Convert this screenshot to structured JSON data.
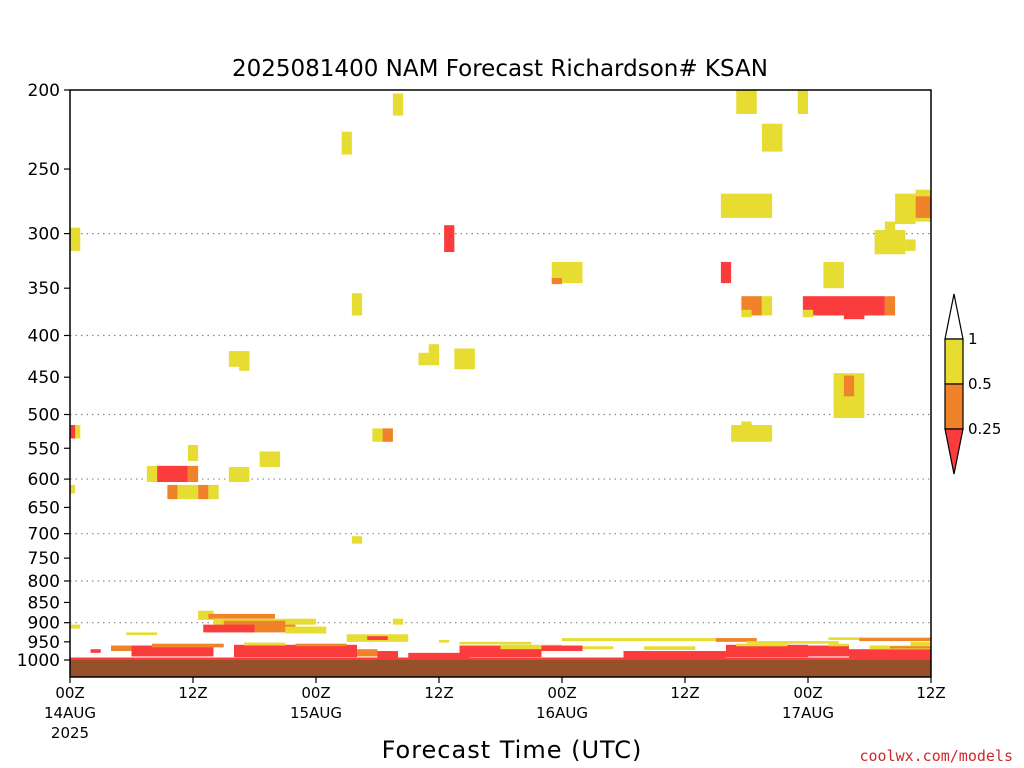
{
  "chart_data": {
    "type": "heatmap",
    "title": "2025081400 NAM Forecast Richardson# KSAN",
    "xlabel": "Forecast Time (UTC)",
    "ylabel": "",
    "xlim": [
      0,
      84
    ],
    "ylim": [
      1000,
      200
    ],
    "y_scale": "log",
    "y_ticks": [
      200,
      250,
      300,
      350,
      400,
      450,
      500,
      550,
      600,
      650,
      700,
      750,
      800,
      850,
      900,
      950,
      1000
    ],
    "gridlines_at": [
      300,
      400,
      500,
      600,
      700,
      800,
      900
    ],
    "x_ticks": [
      {
        "hour": 0,
        "label": "00Z",
        "sub": "14AUG",
        "sub2": "2025"
      },
      {
        "hour": 12,
        "label": "12Z",
        "sub": "",
        "sub2": ""
      },
      {
        "hour": 24,
        "label": "00Z",
        "sub": "15AUG",
        "sub2": ""
      },
      {
        "hour": 36,
        "label": "12Z",
        "sub": "",
        "sub2": ""
      },
      {
        "hour": 48,
        "label": "00Z",
        "sub": "16AUG",
        "sub2": ""
      },
      {
        "hour": 60,
        "label": "12Z",
        "sub": "",
        "sub2": ""
      },
      {
        "hour": 72,
        "label": "00Z",
        "sub": "17AUG",
        "sub2": ""
      },
      {
        "hour": 84,
        "label": "12Z",
        "sub": "",
        "sub2": ""
      }
    ],
    "legend": {
      "placement": "right",
      "levels": [
        "1",
        "0.5",
        "0.25"
      ],
      "colors": {
        "gt1": "#ffffff",
        "mid_high": "#e6dc32",
        "mid_low": "#f0822a",
        "low": "#fa3c3c"
      }
    },
    "colors": {
      "yellow": "#e6dc32",
      "orange": "#f0822a",
      "red": "#fa3c3c",
      "ground": "#96502a"
    },
    "cells": [
      {
        "t0": 0,
        "t1": 1,
        "p0": 295,
        "p1": 315,
        "c": "yellow"
      },
      {
        "t0": 0,
        "t1": 1,
        "p0": 515,
        "p1": 535,
        "c": "yellow"
      },
      {
        "t0": 0,
        "t1": 0.5,
        "p0": 515,
        "p1": 535,
        "c": "red"
      },
      {
        "t0": 0,
        "t1": 0.5,
        "p0": 610,
        "p1": 625,
        "c": "yellow"
      },
      {
        "t0": 31.5,
        "t1": 32.5,
        "p0": 202,
        "p1": 215,
        "c": "yellow"
      },
      {
        "t0": 26.5,
        "t1": 27.5,
        "p0": 225,
        "p1": 240,
        "c": "yellow"
      },
      {
        "t0": 36.5,
        "t1": 37.5,
        "p0": 293,
        "p1": 316,
        "c": "red"
      },
      {
        "t0": 47,
        "t1": 50,
        "p0": 325,
        "p1": 345,
        "c": "yellow"
      },
      {
        "t0": 47,
        "t1": 48,
        "p0": 340,
        "p1": 346,
        "c": "orange"
      },
      {
        "t0": 27.5,
        "t1": 28.5,
        "p0": 355,
        "p1": 378,
        "c": "yellow"
      },
      {
        "t0": 15.5,
        "t1": 17.5,
        "p0": 418,
        "p1": 437,
        "c": "yellow"
      },
      {
        "t0": 16.5,
        "t1": 17.5,
        "p0": 420,
        "p1": 442,
        "c": "yellow"
      },
      {
        "t0": 34,
        "t1": 36,
        "p0": 420,
        "p1": 435,
        "c": "yellow"
      },
      {
        "t0": 35,
        "t1": 36,
        "p0": 410,
        "p1": 430,
        "c": "yellow"
      },
      {
        "t0": 37.5,
        "t1": 39.5,
        "p0": 415,
        "p1": 440,
        "c": "yellow"
      },
      {
        "t0": 29.5,
        "t1": 31.5,
        "p0": 520,
        "p1": 540,
        "c": "yellow"
      },
      {
        "t0": 30.5,
        "t1": 31.5,
        "p0": 520,
        "p1": 540,
        "c": "orange"
      },
      {
        "t0": 18.5,
        "t1": 20.5,
        "p0": 555,
        "p1": 580,
        "c": "yellow"
      },
      {
        "t0": 11.5,
        "t1": 12.5,
        "p0": 545,
        "p1": 570,
        "c": "yellow"
      },
      {
        "t0": 7.5,
        "t1": 8.5,
        "p0": 578,
        "p1": 605,
        "c": "yellow"
      },
      {
        "t0": 8.5,
        "t1": 11.5,
        "p0": 578,
        "p1": 605,
        "c": "red"
      },
      {
        "t0": 11.5,
        "t1": 12.5,
        "p0": 578,
        "p1": 605,
        "c": "orange"
      },
      {
        "t0": 15.5,
        "t1": 17.5,
        "p0": 580,
        "p1": 605,
        "c": "yellow"
      },
      {
        "t0": 9.5,
        "t1": 10.5,
        "p0": 610,
        "p1": 635,
        "c": "orange"
      },
      {
        "t0": 10.5,
        "t1": 12.5,
        "p0": 610,
        "p1": 635,
        "c": "yellow"
      },
      {
        "t0": 12.5,
        "t1": 13.5,
        "p0": 610,
        "p1": 635,
        "c": "orange"
      },
      {
        "t0": 13.5,
        "t1": 14.5,
        "p0": 610,
        "p1": 635,
        "c": "yellow"
      },
      {
        "t0": 27.5,
        "t1": 28.5,
        "p0": 705,
        "p1": 720,
        "c": "yellow"
      },
      {
        "t0": 31.5,
        "t1": 32.5,
        "p0": 890,
        "p1": 905,
        "c": "yellow"
      },
      {
        "t0": 65,
        "t1": 66,
        "p0": 200,
        "p1": 214,
        "c": "yellow"
      },
      {
        "t0": 66,
        "t1": 67,
        "p0": 200,
        "p1": 214,
        "c": "yellow"
      },
      {
        "t0": 71,
        "t1": 72,
        "p0": 200,
        "p1": 214,
        "c": "yellow"
      },
      {
        "t0": 67.5,
        "t1": 69.5,
        "p0": 220,
        "p1": 238,
        "c": "yellow"
      },
      {
        "t0": 63.5,
        "t1": 68.5,
        "p0": 268,
        "p1": 287,
        "c": "yellow"
      },
      {
        "t0": 80.5,
        "t1": 82.5,
        "p0": 268,
        "p1": 292,
        "c": "yellow"
      },
      {
        "t0": 82.5,
        "t1": 84,
        "p0": 265,
        "p1": 290,
        "c": "yellow"
      },
      {
        "t0": 82.5,
        "t1": 84,
        "p0": 270,
        "p1": 287,
        "c": "orange"
      },
      {
        "t0": 79.5,
        "t1": 80.5,
        "p0": 290,
        "p1": 315,
        "c": "yellow"
      },
      {
        "t0": 78.5,
        "t1": 81.5,
        "p0": 297,
        "p1": 318,
        "c": "yellow"
      },
      {
        "t0": 81.5,
        "t1": 82.5,
        "p0": 305,
        "p1": 315,
        "c": "yellow"
      },
      {
        "t0": 63.5,
        "t1": 64.5,
        "p0": 325,
        "p1": 345,
        "c": "red"
      },
      {
        "t0": 73.5,
        "t1": 75.5,
        "p0": 325,
        "p1": 350,
        "c": "yellow"
      },
      {
        "t0": 65.5,
        "t1": 67.5,
        "p0": 358,
        "p1": 378,
        "c": "orange"
      },
      {
        "t0": 65.5,
        "t1": 66.5,
        "p0": 372,
        "p1": 380,
        "c": "yellow"
      },
      {
        "t0": 67.5,
        "t1": 68.5,
        "p0": 358,
        "p1": 378,
        "c": "yellow"
      },
      {
        "t0": 71.5,
        "t1": 79.5,
        "p0": 358,
        "p1": 378,
        "c": "red"
      },
      {
        "t0": 71.5,
        "t1": 72.5,
        "p0": 372,
        "p1": 380,
        "c": "yellow"
      },
      {
        "t0": 75.5,
        "t1": 77.5,
        "p0": 370,
        "p1": 382,
        "c": "red"
      },
      {
        "t0": 79.5,
        "t1": 80.5,
        "p0": 358,
        "p1": 378,
        "c": "orange"
      },
      {
        "t0": 74.5,
        "t1": 77.5,
        "p0": 445,
        "p1": 505,
        "c": "yellow"
      },
      {
        "t0": 74.5,
        "t1": 75.5,
        "p0": 445,
        "p1": 490,
        "c": "yellow"
      },
      {
        "t0": 75.5,
        "t1": 76.5,
        "p0": 448,
        "p1": 475,
        "c": "orange"
      },
      {
        "t0": 64.5,
        "t1": 68.5,
        "p0": 515,
        "p1": 540,
        "c": "yellow"
      },
      {
        "t0": 65.5,
        "t1": 66.5,
        "p0": 510,
        "p1": 520,
        "c": "yellow"
      }
    ],
    "bands": [
      {
        "t0": 0,
        "t1": 1,
        "p0": 905,
        "p1": 915,
        "c": "yellow"
      },
      {
        "t0": 5.5,
        "t1": 8.5,
        "p0": 925,
        "p1": 932,
        "c": "yellow"
      },
      {
        "t0": 12.5,
        "t1": 14,
        "p0": 870,
        "p1": 893,
        "c": "yellow"
      },
      {
        "t0": 13.5,
        "t1": 20,
        "p0": 878,
        "p1": 890,
        "c": "orange"
      },
      {
        "t0": 14,
        "t1": 24,
        "p0": 890,
        "p1": 905,
        "c": "yellow"
      },
      {
        "t0": 15,
        "t1": 21,
        "p0": 895,
        "p1": 915,
        "c": "orange"
      },
      {
        "t0": 17,
        "t1": 22,
        "p0": 905,
        "p1": 925,
        "c": "orange"
      },
      {
        "t0": 21,
        "t1": 25,
        "p0": 910,
        "p1": 928,
        "c": "yellow"
      },
      {
        "t0": 13,
        "t1": 18,
        "p0": 905,
        "p1": 925,
        "c": "red"
      },
      {
        "t0": 27,
        "t1": 33,
        "p0": 930,
        "p1": 950,
        "c": "yellow"
      },
      {
        "t0": 29,
        "t1": 31,
        "p0": 935,
        "p1": 945,
        "c": "red"
      },
      {
        "t0": 36,
        "t1": 37,
        "p0": 945,
        "p1": 952,
        "c": "yellow"
      },
      {
        "t0": 38,
        "t1": 45,
        "p0": 950,
        "p1": 957,
        "c": "yellow"
      },
      {
        "t0": 48,
        "t1": 63,
        "p0": 940,
        "p1": 948,
        "c": "yellow"
      },
      {
        "t0": 63,
        "t1": 67,
        "p0": 940,
        "p1": 950,
        "c": "orange"
      },
      {
        "t0": 66,
        "t1": 75,
        "p0": 948,
        "p1": 955,
        "c": "yellow"
      },
      {
        "t0": 74,
        "t1": 84,
        "p0": 938,
        "p1": 945,
        "c": "yellow"
      },
      {
        "t0": 77,
        "t1": 84,
        "p0": 940,
        "p1": 948,
        "c": "orange"
      },
      {
        "t0": 82,
        "t1": 84,
        "p0": 950,
        "p1": 960,
        "c": "yellow"
      },
      {
        "t0": 2,
        "t1": 3,
        "p0": 970,
        "p1": 980,
        "c": "red"
      },
      {
        "t0": 4,
        "t1": 7,
        "p0": 960,
        "p1": 975,
        "c": "orange"
      },
      {
        "t0": 6,
        "t1": 14,
        "p0": 960,
        "p1": 990,
        "c": "red"
      },
      {
        "t0": 8,
        "t1": 15,
        "p0": 955,
        "p1": 965,
        "c": "orange"
      },
      {
        "t0": 16,
        "t1": 28,
        "p0": 958,
        "p1": 992,
        "c": "red"
      },
      {
        "t0": 17,
        "t1": 21,
        "p0": 952,
        "p1": 960,
        "c": "yellow"
      },
      {
        "t0": 22,
        "t1": 27,
        "p0": 955,
        "p1": 962,
        "c": "orange"
      },
      {
        "t0": 28,
        "t1": 30,
        "p0": 970,
        "p1": 990,
        "c": "orange"
      },
      {
        "t0": 30,
        "t1": 32,
        "p0": 975,
        "p1": 995,
        "c": "red"
      },
      {
        "t0": 33,
        "t1": 39,
        "p0": 980,
        "p1": 995,
        "c": "red"
      },
      {
        "t0": 38,
        "t1": 46,
        "p0": 960,
        "p1": 992,
        "c": "red"
      },
      {
        "t0": 42,
        "t1": 48,
        "p0": 958,
        "p1": 970,
        "c": "yellow"
      },
      {
        "t0": 46,
        "t1": 50,
        "p0": 960,
        "p1": 975,
        "c": "red"
      },
      {
        "t0": 50,
        "t1": 53,
        "p0": 962,
        "p1": 970,
        "c": "yellow"
      },
      {
        "t0": 54,
        "t1": 64,
        "p0": 975,
        "p1": 995,
        "c": "red"
      },
      {
        "t0": 56,
        "t1": 61,
        "p0": 962,
        "p1": 972,
        "c": "yellow"
      },
      {
        "t0": 64,
        "t1": 72,
        "p0": 958,
        "p1": 992,
        "c": "red"
      },
      {
        "t0": 65,
        "t1": 70,
        "p0": 955,
        "p1": 962,
        "c": "yellow"
      },
      {
        "t0": 72,
        "t1": 76,
        "p0": 960,
        "p1": 990,
        "c": "red"
      },
      {
        "t0": 74,
        "t1": 76,
        "p0": 955,
        "p1": 962,
        "c": "yellow"
      },
      {
        "t0": 76,
        "t1": 84,
        "p0": 970,
        "p1": 993,
        "c": "red"
      },
      {
        "t0": 78,
        "t1": 84,
        "p0": 960,
        "p1": 970,
        "c": "yellow"
      },
      {
        "t0": 80,
        "t1": 84,
        "p0": 962,
        "p1": 968,
        "c": "orange"
      },
      {
        "t0": 0,
        "t1": 84,
        "p0": 993,
        "p1": 1000,
        "c": "red"
      }
    ],
    "ground": {
      "p0": 1000,
      "p1": 1030
    }
  },
  "credit": "coolwx.com/models"
}
